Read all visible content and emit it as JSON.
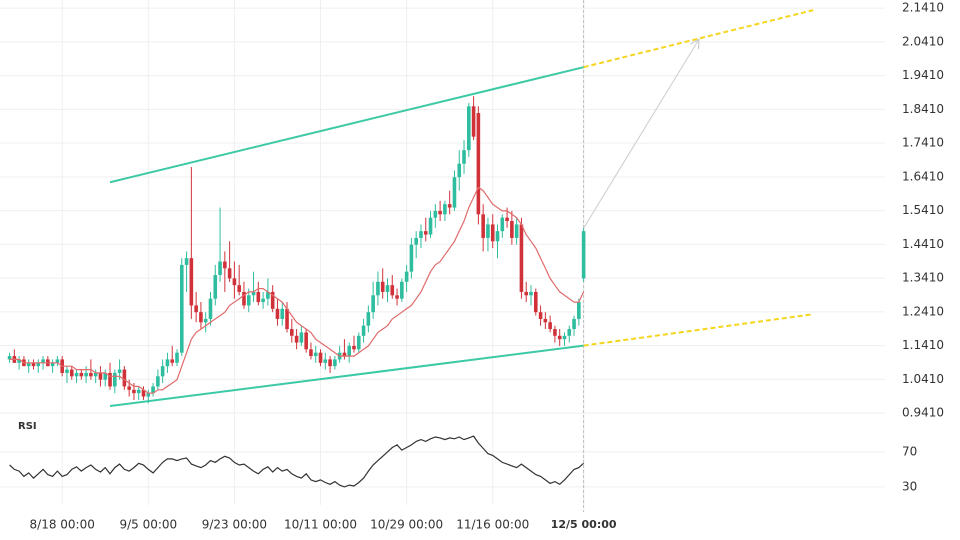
{
  "chart_data": {
    "type": "candlestick",
    "up_color": "#2ebd9e",
    "down_color": "#d1323a",
    "ma_color": "#e06b6b",
    "grid": true,
    "xlim": [
      -2,
      183
    ],
    "ylim": [
      0.93,
      2.165
    ],
    "yticks": [
      {
        "value": 0.941,
        "label": "0.9410"
      },
      {
        "value": 1.041,
        "label": "1.0410"
      },
      {
        "value": 1.141,
        "label": "1.1410"
      },
      {
        "value": 1.241,
        "label": "1.2410"
      },
      {
        "value": 1.341,
        "label": "1.3410"
      },
      {
        "value": 1.441,
        "label": "1.4410"
      },
      {
        "value": 1.541,
        "label": "1.5410"
      },
      {
        "value": 1.641,
        "label": "1.6410"
      },
      {
        "value": 1.741,
        "label": "1.7410"
      },
      {
        "value": 1.841,
        "label": "1.8410"
      },
      {
        "value": 1.941,
        "label": "1.9410"
      },
      {
        "value": 2.041,
        "label": "2.0410"
      },
      {
        "value": 2.141,
        "label": "2.1410"
      }
    ],
    "xticks": [
      {
        "value": 11,
        "label": "8/18 00:00"
      },
      {
        "value": 29,
        "label": "9/5 00:00"
      },
      {
        "value": 47,
        "label": "9/23 00:00"
      },
      {
        "value": 65,
        "label": "10/11 00:00"
      },
      {
        "value": 83,
        "label": "10/29 00:00"
      },
      {
        "value": 101,
        "label": "11/16 00:00"
      },
      {
        "value": 120,
        "label": "12/5 00:00"
      }
    ],
    "candles": [
      [
        1.1,
        1.12,
        1.09,
        1.11
      ],
      [
        1.11,
        1.13,
        1.09,
        1.09
      ],
      [
        1.09,
        1.11,
        1.07,
        1.1
      ],
      [
        1.1,
        1.11,
        1.08,
        1.08
      ],
      [
        1.08,
        1.1,
        1.06,
        1.09
      ],
      [
        1.09,
        1.1,
        1.07,
        1.08
      ],
      [
        1.08,
        1.1,
        1.06,
        1.09
      ],
      [
        1.09,
        1.11,
        1.07,
        1.1
      ],
      [
        1.1,
        1.11,
        1.08,
        1.08
      ],
      [
        1.08,
        1.1,
        1.06,
        1.09
      ],
      [
        1.09,
        1.11,
        1.08,
        1.1
      ],
      [
        1.1,
        1.11,
        1.05,
        1.06
      ],
      [
        1.06,
        1.08,
        1.03,
        1.07
      ],
      [
        1.07,
        1.08,
        1.04,
        1.05
      ],
      [
        1.05,
        1.07,
        1.03,
        1.06
      ],
      [
        1.06,
        1.07,
        1.04,
        1.05
      ],
      [
        1.05,
        1.08,
        1.03,
        1.06
      ],
      [
        1.06,
        1.1,
        1.04,
        1.05
      ],
      [
        1.05,
        1.07,
        1.03,
        1.06
      ],
      [
        1.06,
        1.08,
        1.02,
        1.04
      ],
      [
        1.04,
        1.07,
        1.02,
        1.06
      ],
      [
        1.06,
        1.09,
        1.01,
        1.02
      ],
      [
        1.02,
        1.07,
        1.0,
        1.06
      ],
      [
        1.06,
        1.1,
        1.04,
        1.07
      ],
      [
        1.07,
        1.08,
        1.01,
        1.02
      ],
      [
        1.02,
        1.04,
        0.99,
        1.01
      ],
      [
        1.01,
        1.03,
        0.98,
        1.0
      ],
      [
        1.0,
        1.02,
        0.98,
        1.01
      ],
      [
        1.01,
        1.02,
        0.98,
        0.99
      ],
      [
        0.99,
        1.01,
        0.97,
        1.0
      ],
      [
        1.0,
        1.03,
        0.99,
        1.02
      ],
      [
        1.02,
        1.07,
        1.01,
        1.05
      ],
      [
        1.05,
        1.1,
        1.03,
        1.08
      ],
      [
        1.08,
        1.12,
        1.06,
        1.1
      ],
      [
        1.1,
        1.14,
        1.08,
        1.09
      ],
      [
        1.09,
        1.13,
        1.08,
        1.12
      ],
      [
        1.12,
        1.4,
        1.11,
        1.38
      ],
      [
        1.38,
        1.42,
        1.3,
        1.4
      ],
      [
        1.4,
        1.67,
        1.22,
        1.26
      ],
      [
        1.26,
        1.3,
        1.21,
        1.24
      ],
      [
        1.24,
        1.27,
        1.19,
        1.21
      ],
      [
        1.21,
        1.24,
        1.18,
        1.22
      ],
      [
        1.22,
        1.3,
        1.2,
        1.28
      ],
      [
        1.28,
        1.38,
        1.26,
        1.35
      ],
      [
        1.35,
        1.55,
        1.33,
        1.39
      ],
      [
        1.39,
        1.42,
        1.3,
        1.37
      ],
      [
        1.37,
        1.45,
        1.33,
        1.34
      ],
      [
        1.34,
        1.39,
        1.28,
        1.32
      ],
      [
        1.32,
        1.38,
        1.29,
        1.3
      ],
      [
        1.3,
        1.33,
        1.25,
        1.26
      ],
      [
        1.26,
        1.31,
        1.24,
        1.29
      ],
      [
        1.29,
        1.36,
        1.27,
        1.3
      ],
      [
        1.3,
        1.33,
        1.26,
        1.27
      ],
      [
        1.27,
        1.3,
        1.25,
        1.28
      ],
      [
        1.28,
        1.34,
        1.26,
        1.3
      ],
      [
        1.3,
        1.32,
        1.24,
        1.25
      ],
      [
        1.25,
        1.28,
        1.2,
        1.22
      ],
      [
        1.22,
        1.27,
        1.2,
        1.25
      ],
      [
        1.25,
        1.27,
        1.18,
        1.19
      ],
      [
        1.19,
        1.22,
        1.15,
        1.17
      ],
      [
        1.17,
        1.19,
        1.13,
        1.15
      ],
      [
        1.15,
        1.2,
        1.14,
        1.18
      ],
      [
        1.18,
        1.19,
        1.12,
        1.13
      ],
      [
        1.13,
        1.15,
        1.1,
        1.11
      ],
      [
        1.11,
        1.14,
        1.09,
        1.12
      ],
      [
        1.12,
        1.13,
        1.08,
        1.09
      ],
      [
        1.09,
        1.12,
        1.07,
        1.1
      ],
      [
        1.1,
        1.11,
        1.06,
        1.08
      ],
      [
        1.08,
        1.11,
        1.07,
        1.1
      ],
      [
        1.1,
        1.14,
        1.09,
        1.12
      ],
      [
        1.12,
        1.16,
        1.1,
        1.11
      ],
      [
        1.11,
        1.15,
        1.09,
        1.14
      ],
      [
        1.14,
        1.17,
        1.12,
        1.13
      ],
      [
        1.13,
        1.18,
        1.12,
        1.17
      ],
      [
        1.17,
        1.22,
        1.15,
        1.2
      ],
      [
        1.2,
        1.26,
        1.18,
        1.24
      ],
      [
        1.24,
        1.33,
        1.22,
        1.29
      ],
      [
        1.29,
        1.36,
        1.26,
        1.33
      ],
      [
        1.33,
        1.37,
        1.28,
        1.3
      ],
      [
        1.3,
        1.34,
        1.27,
        1.32
      ],
      [
        1.32,
        1.35,
        1.28,
        1.29
      ],
      [
        1.29,
        1.31,
        1.26,
        1.28
      ],
      [
        1.28,
        1.34,
        1.27,
        1.33
      ],
      [
        1.33,
        1.38,
        1.3,
        1.36
      ],
      [
        1.36,
        1.46,
        1.34,
        1.44
      ],
      [
        1.44,
        1.48,
        1.4,
        1.46
      ],
      [
        1.46,
        1.5,
        1.43,
        1.48
      ],
      [
        1.48,
        1.52,
        1.45,
        1.47
      ],
      [
        1.47,
        1.54,
        1.46,
        1.52
      ],
      [
        1.52,
        1.56,
        1.49,
        1.54
      ],
      [
        1.54,
        1.57,
        1.51,
        1.53
      ],
      [
        1.53,
        1.57,
        1.51,
        1.56
      ],
      [
        1.56,
        1.6,
        1.53,
        1.55
      ],
      [
        1.55,
        1.66,
        1.54,
        1.64
      ],
      [
        1.64,
        1.72,
        1.6,
        1.68
      ],
      [
        1.68,
        1.75,
        1.65,
        1.72
      ],
      [
        1.72,
        1.86,
        1.7,
        1.85
      ],
      [
        1.85,
        1.88,
        1.75,
        1.76
      ],
      [
        1.83,
        1.85,
        1.5,
        1.53
      ],
      [
        1.53,
        1.56,
        1.42,
        1.46
      ],
      [
        1.46,
        1.52,
        1.42,
        1.5
      ],
      [
        1.5,
        1.53,
        1.43,
        1.45
      ],
      [
        1.45,
        1.5,
        1.4,
        1.48
      ],
      [
        1.48,
        1.53,
        1.46,
        1.52
      ],
      [
        1.52,
        1.55,
        1.49,
        1.51
      ],
      [
        1.51,
        1.54,
        1.44,
        1.46
      ],
      [
        1.46,
        1.52,
        1.44,
        1.5
      ],
      [
        1.5,
        1.52,
        1.28,
        1.3
      ],
      [
        1.3,
        1.33,
        1.27,
        1.29
      ],
      [
        1.29,
        1.32,
        1.26,
        1.3
      ],
      [
        1.3,
        1.31,
        1.23,
        1.24
      ],
      [
        1.24,
        1.26,
        1.2,
        1.22
      ],
      [
        1.22,
        1.24,
        1.19,
        1.21
      ],
      [
        1.21,
        1.23,
        1.18,
        1.19
      ],
      [
        1.19,
        1.2,
        1.15,
        1.17
      ],
      [
        1.17,
        1.19,
        1.14,
        1.16
      ],
      [
        1.16,
        1.18,
        1.14,
        1.17
      ],
      [
        1.17,
        1.2,
        1.15,
        1.19
      ],
      [
        1.19,
        1.23,
        1.17,
        1.22
      ],
      [
        1.22,
        1.28,
        1.2,
        1.27
      ],
      [
        1.34,
        1.49,
        1.33,
        1.48
      ]
    ],
    "ma": [
      1.1,
      1.1,
      1.1,
      1.09,
      1.09,
      1.09,
      1.09,
      1.09,
      1.09,
      1.09,
      1.09,
      1.08,
      1.08,
      1.08,
      1.07,
      1.07,
      1.07,
      1.07,
      1.06,
      1.06,
      1.06,
      1.05,
      1.05,
      1.05,
      1.04,
      1.03,
      1.02,
      1.02,
      1.01,
      1.0,
      1.0,
      1.01,
      1.01,
      1.02,
      1.03,
      1.04,
      1.08,
      1.12,
      1.16,
      1.18,
      1.19,
      1.2,
      1.21,
      1.22,
      1.23,
      1.24,
      1.26,
      1.27,
      1.28,
      1.29,
      1.3,
      1.3,
      1.31,
      1.31,
      1.3,
      1.29,
      1.28,
      1.27,
      1.25,
      1.23,
      1.21,
      1.2,
      1.19,
      1.18,
      1.16,
      1.15,
      1.14,
      1.13,
      1.12,
      1.11,
      1.11,
      1.11,
      1.11,
      1.12,
      1.13,
      1.14,
      1.16,
      1.18,
      1.19,
      1.2,
      1.22,
      1.23,
      1.24,
      1.25,
      1.26,
      1.28,
      1.3,
      1.33,
      1.36,
      1.38,
      1.39,
      1.41,
      1.43,
      1.45,
      1.48,
      1.51,
      1.55,
      1.58,
      1.61,
      1.6,
      1.58,
      1.56,
      1.55,
      1.54,
      1.54,
      1.53,
      1.52,
      1.5,
      1.47,
      1.45,
      1.43,
      1.4,
      1.37,
      1.34,
      1.32,
      1.3,
      1.29,
      1.28,
      1.27,
      1.27,
      1.3
    ],
    "trendlines": [
      {
        "x": [
          21,
          120
        ],
        "y": [
          1.625,
          1.966
        ],
        "color": "#3cc9a6",
        "dashed": false,
        "arrow": false
      },
      {
        "x": [
          21,
          120
        ],
        "y": [
          0.962,
          1.141
        ],
        "color": "#3cc9a6",
        "dashed": false,
        "arrow": false
      },
      {
        "x": [
          120,
          168
        ],
        "y": [
          1.966,
          2.135
        ],
        "color": "#f5d51f",
        "dashed": true,
        "arrow": false
      },
      {
        "x": [
          120,
          168
        ],
        "y": [
          1.141,
          1.234
        ],
        "color": "#f5d51f",
        "dashed": true,
        "arrow": false
      },
      {
        "x": [
          120,
          144
        ],
        "y": [
          1.489,
          2.046
        ],
        "color": "#cccccc",
        "dashed": false,
        "arrow": true
      }
    ],
    "rsi_label": "RSI",
    "rsi_color": "#333333",
    "rsi_ylim": [
      15,
      95
    ],
    "rsi_yticks": [
      30,
      70
    ],
    "rsi": [
      55,
      50,
      48,
      42,
      46,
      40,
      45,
      50,
      44,
      42,
      48,
      42,
      44,
      50,
      53,
      48,
      52,
      55,
      50,
      47,
      52,
      45,
      52,
      56,
      50,
      48,
      52,
      57,
      55,
      50,
      46,
      52,
      58,
      62,
      62,
      60,
      62,
      63,
      56,
      54,
      52,
      55,
      60,
      58,
      62,
      65,
      63,
      58,
      55,
      56,
      52,
      48,
      45,
      50,
      53,
      47,
      52,
      48,
      50,
      45,
      42,
      40,
      45,
      38,
      36,
      38,
      35,
      33,
      36,
      32,
      30,
      32,
      31,
      35,
      40,
      48,
      55,
      60,
      65,
      70,
      75,
      78,
      72,
      75,
      78,
      82,
      84,
      82,
      85,
      87,
      86,
      84,
      86,
      85,
      87,
      84,
      86,
      88,
      80,
      74,
      68,
      66,
      62,
      58,
      56,
      54,
      52,
      56,
      52,
      48,
      44,
      42,
      38,
      34,
      36,
      33,
      38,
      44,
      50,
      52,
      57
    ]
  }
}
